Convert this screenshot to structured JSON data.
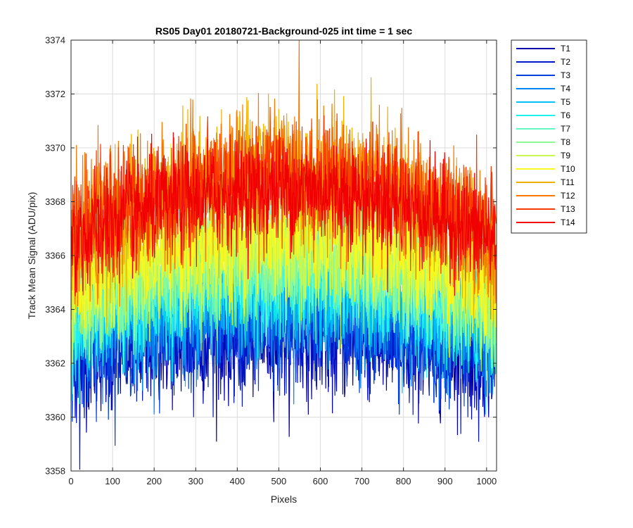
{
  "chart_data": {
    "type": "line",
    "title": "RS05 Day01 20180721-Background-025 int time = 1 sec",
    "xlabel": "Pixels",
    "ylabel": "Track Mean Signal (ADU/pix)",
    "xlim": [
      0,
      1024
    ],
    "ylim": [
      3358,
      3374
    ],
    "xticks": [
      0,
      100,
      200,
      300,
      400,
      500,
      600,
      700,
      800,
      900,
      1000
    ],
    "yticks": [
      3358,
      3360,
      3362,
      3364,
      3366,
      3368,
      3370,
      3372,
      3374
    ],
    "grid": true,
    "legend_position": "outside-top-right",
    "n_points": 1024,
    "series": [
      {
        "name": "T1",
        "color": "#0000a8",
        "edge": 3362.2,
        "center": 3363.0,
        "noise": 1.1
      },
      {
        "name": "T2",
        "color": "#0018c8",
        "edge": 3362.4,
        "center": 3363.3,
        "noise": 1.1
      },
      {
        "name": "T3",
        "color": "#0040e0",
        "edge": 3362.7,
        "center": 3363.7,
        "noise": 1.1
      },
      {
        "name": "T4",
        "color": "#0088f0",
        "edge": 3363.0,
        "center": 3364.2,
        "noise": 1.1
      },
      {
        "name": "T5",
        "color": "#00c0f8",
        "edge": 3363.3,
        "center": 3364.7,
        "noise": 1.1
      },
      {
        "name": "T6",
        "color": "#20f0f0",
        "edge": 3363.6,
        "center": 3365.2,
        "noise": 1.1
      },
      {
        "name": "T7",
        "color": "#60f8c0",
        "edge": 3363.9,
        "center": 3365.6,
        "noise": 1.1
      },
      {
        "name": "T8",
        "color": "#90f890",
        "edge": 3364.2,
        "center": 3366.0,
        "noise": 1.1
      },
      {
        "name": "T9",
        "color": "#c8f850",
        "edge": 3364.5,
        "center": 3366.4,
        "noise": 1.1
      },
      {
        "name": "T10",
        "color": "#f8f820",
        "edge": 3364.8,
        "center": 3366.8,
        "noise": 1.1
      },
      {
        "name": "T11",
        "color": "#f0b000",
        "edge": 3366.0,
        "center": 3369.2,
        "noise": 1.2
      },
      {
        "name": "T12",
        "color": "#f87800",
        "edge": 3366.4,
        "center": 3369.0,
        "noise": 1.2
      },
      {
        "name": "T13",
        "color": "#f83800",
        "edge": 3366.8,
        "center": 3368.8,
        "noise": 1.1
      },
      {
        "name": "T14",
        "color": "#f00000",
        "edge": 3366.5,
        "center": 3368.5,
        "noise": 1.0
      }
    ]
  }
}
